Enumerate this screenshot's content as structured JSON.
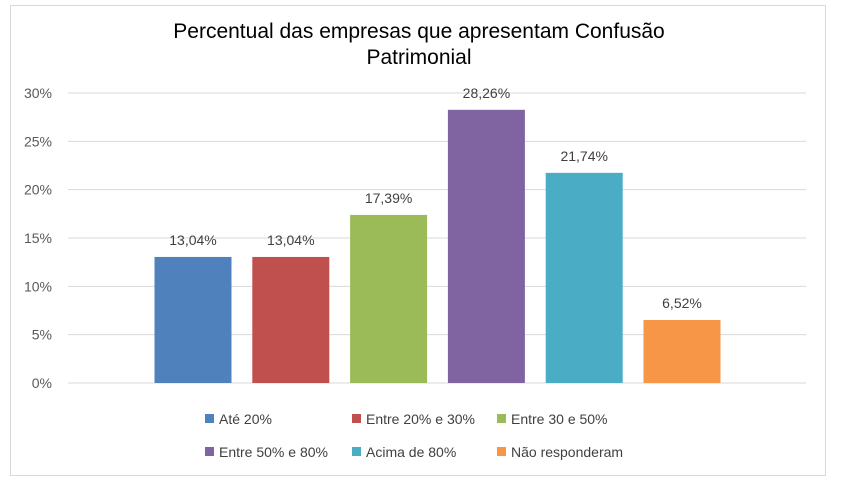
{
  "chart_data": {
    "type": "bar",
    "title_lines": [
      "Percentual das empresas que apresentam Confusão",
      "Patrimonial"
    ],
    "xlabel": "",
    "ylabel": "",
    "ylim": [
      0,
      30
    ],
    "y_ticks": [
      0,
      5,
      10,
      15,
      20,
      25,
      30
    ],
    "y_tick_labels": [
      "0%",
      "5%",
      "10%",
      "15%",
      "20%",
      "25%",
      "30%"
    ],
    "grid": true,
    "legend_position": "bottom",
    "series": [
      {
        "name": "Até 20%",
        "value": 13.04,
        "label": "13,04%",
        "color": "#4f81bd"
      },
      {
        "name": "Entre 20% e 30%",
        "value": 13.04,
        "label": "13,04%",
        "color": "#c0504d"
      },
      {
        "name": "Entre 30 e 50%",
        "value": 17.39,
        "label": "17,39%",
        "color": "#9bbb59"
      },
      {
        "name": "Entre 50% e 80%",
        "value": 28.26,
        "label": "28,26%",
        "color": "#8064a2"
      },
      {
        "name": "Acima de 80%",
        "value": 21.74,
        "label": "21,74%",
        "color": "#4bacc6"
      },
      {
        "name": "Não responderam",
        "value": 6.52,
        "label": "6,52%",
        "color": "#f79646"
      }
    ]
  }
}
